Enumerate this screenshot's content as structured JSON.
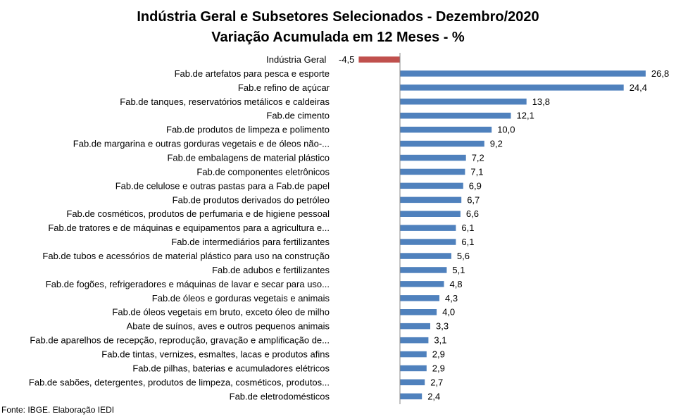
{
  "chart_data": {
    "type": "bar",
    "orientation": "horizontal",
    "title": "Indústria Geral e Subsetores Selecionados - Dezembro/2020",
    "subtitle": "Variação Acumulada em 12 Meses - %",
    "categories": [
      "Indústria Geral",
      "Fab.de artefatos para pesca e esporte",
      "Fab.e refino de açúcar",
      "Fab.de tanques, reservatórios metálicos e caldeiras",
      "Fab.de cimento",
      "Fab.de produtos de limpeza e polimento",
      "Fab.de margarina e outras gorduras vegetais e de óleos não-...",
      "Fab.de embalagens de material plástico",
      "Fab.de componentes eletrônicos",
      "Fab.de celulose e outras pastas para a Fab.de papel",
      "Fab.de produtos derivados do petróleo",
      "Fab.de cosméticos, produtos de perfumaria e de higiene pessoal",
      "Fab.de tratores e de máquinas e equipamentos para a agricultura e...",
      "Fab.de intermediários para fertilizantes",
      "Fab.de tubos e acessórios de material plástico para uso na construção",
      "Fab.de adubos e fertilizantes",
      "Fab.de fogões, refrigeradores e máquinas de lavar e secar para uso...",
      "Fab.de óleos e gorduras vegetais e animais",
      "Fab.de óleos vegetais em bruto, exceto óleo de milho",
      "Abate de suínos, aves e outros pequenos animais",
      "Fab.de aparelhos de recepção, reprodução, gravação e amplificação de...",
      "Fab.de tintas, vernizes, esmaltes, lacas e produtos afins",
      "Fab.de pilhas, baterias e acumuladores elétricos",
      "Fab.de sabões, detergentes, produtos de limpeza, cosméticos, produtos...",
      "Fab.de eletrodomésticos"
    ],
    "values": [
      -4.5,
      26.8,
      24.4,
      13.8,
      12.1,
      10.0,
      9.2,
      7.2,
      7.1,
      6.9,
      6.7,
      6.6,
      6.1,
      6.1,
      5.6,
      5.1,
      4.8,
      4.3,
      4.0,
      3.3,
      3.1,
      2.9,
      2.9,
      2.7,
      2.4
    ],
    "value_labels": [
      "-4,5",
      "26,8",
      "24,4",
      "13,8",
      "12,1",
      "10,0",
      "9,2",
      "7,2",
      "7,1",
      "6,9",
      "6,7",
      "6,6",
      "6,1",
      "6,1",
      "5,6",
      "5,1",
      "4,8",
      "4,3",
      "4,0",
      "3,3",
      "3,1",
      "2,9",
      "2,9",
      "2,7",
      "2,4"
    ],
    "colors": {
      "highlight": "#C0504D",
      "default": "#4F81BD",
      "axis": "#868686"
    },
    "highlight_index": 0,
    "xlabel": "",
    "ylabel": "",
    "grid": false,
    "legend": "none"
  },
  "source": "Fonte: IBGE. Elaboração IEDI"
}
